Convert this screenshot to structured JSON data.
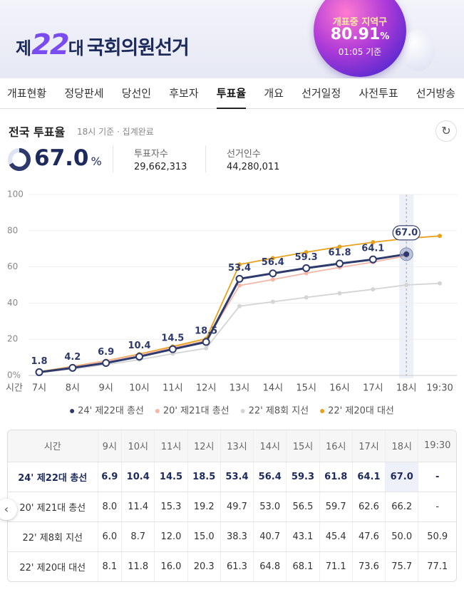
{
  "header": {
    "logo": {
      "prefix": "제",
      "number": "22",
      "suffix": "대",
      "name": "국회의원선거"
    },
    "badge": {
      "status": "개표중 지역구",
      "rate": "80.91",
      "unit": "%",
      "time": "01:05 기준"
    }
  },
  "nav": {
    "tabs": [
      "개표현황",
      "정당판세",
      "당선인",
      "후보자",
      "투표율",
      "개요",
      "선거일정",
      "사전투표",
      "선거방송"
    ],
    "active": 4
  },
  "summary": {
    "title": "전국 투표율",
    "subtitle": "18시 기준 · 집계완료",
    "rate": "67.0",
    "unit": "%",
    "voters_label": "투표자수",
    "voters": "29,662,313",
    "electorate_label": "선거인수",
    "electorate": "44,280,011"
  },
  "chart_data": {
    "type": "line",
    "xlabel": "시간",
    "categories": [
      "7시",
      "8시",
      "9시",
      "10시",
      "11시",
      "12시",
      "13시",
      "14시",
      "15시",
      "16시",
      "17시",
      "18시",
      "19:30"
    ],
    "ylim": [
      0,
      100
    ],
    "yticks": [
      {
        "value": 0,
        "label": "0%"
      },
      20,
      40,
      60,
      80,
      100
    ],
    "grid": true,
    "highlight": 11,
    "series": [
      {
        "name": "24' 제22대 총선",
        "color": "#2d3a6b",
        "marker": "hollow",
        "values": [
          1.8,
          4.2,
          6.9,
          10.4,
          14.5,
          18.5,
          53.4,
          56.4,
          59.3,
          61.8,
          64.1,
          67.0,
          null
        ],
        "value_labels": [
          "1.8",
          "4.2",
          "6.9",
          "10.4",
          "14.5",
          "18.5",
          "53.4",
          "56.4",
          "59.3",
          "61.8",
          "64.1",
          "67.0",
          null
        ]
      },
      {
        "name": "20' 제21대 총선",
        "color": "#f4b6a6",
        "marker": "dot",
        "values": [
          1.9,
          4.8,
          8.0,
          11.4,
          15.3,
          19.2,
          49.7,
          53.0,
          56.5,
          59.7,
          62.6,
          66.2,
          null
        ]
      },
      {
        "name": "22' 제8회 지선",
        "color": "#d4d4d4",
        "marker": "dot",
        "values": [
          1.5,
          3.6,
          6.0,
          8.7,
          12.0,
          15.0,
          38.3,
          40.7,
          43.1,
          45.4,
          47.6,
          50.0,
          50.9
        ]
      },
      {
        "name": "22' 제20대 대선",
        "color": "#e9a11b",
        "marker": "dot",
        "values": [
          2.0,
          5.0,
          8.1,
          11.8,
          16.0,
          20.3,
          61.3,
          64.8,
          68.1,
          71.1,
          73.6,
          75.7,
          77.1
        ]
      }
    ]
  },
  "table": {
    "header": [
      "시간",
      "9시",
      "10시",
      "11시",
      "12시",
      "13시",
      "14시",
      "15시",
      "16시",
      "17시",
      "18시",
      "19:30"
    ],
    "rows": [
      [
        "24' 제22대 총선",
        "6.9",
        "10.4",
        "14.5",
        "18.5",
        "53.4",
        "56.4",
        "59.3",
        "61.8",
        "64.1",
        "67.0",
        "-"
      ],
      [
        "20' 제21대 총선",
        "8.0",
        "11.4",
        "15.3",
        "19.2",
        "49.7",
        "53.0",
        "56.5",
        "59.7",
        "62.6",
        "66.2",
        "-"
      ],
      [
        "22' 제8회 지선",
        "6.0",
        "8.7",
        "12.0",
        "15.0",
        "38.3",
        "40.7",
        "43.1",
        "45.4",
        "47.6",
        "50.0",
        "50.9"
      ],
      [
        "22' 제20대 대선",
        "8.1",
        "11.8",
        "16.0",
        "20.3",
        "61.3",
        "64.8",
        "68.1",
        "71.1",
        "73.6",
        "75.7",
        "77.1"
      ]
    ],
    "highlight": [
      0,
      10
    ]
  }
}
